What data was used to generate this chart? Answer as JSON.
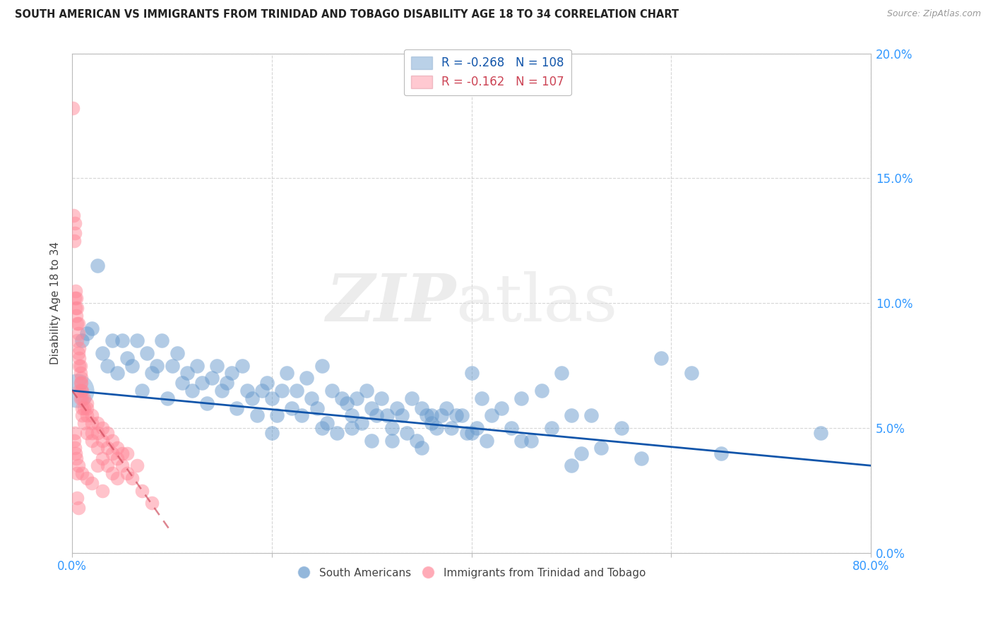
{
  "title": "SOUTH AMERICAN VS IMMIGRANTS FROM TRINIDAD AND TOBAGO DISABILITY AGE 18 TO 34 CORRELATION CHART",
  "source": "Source: ZipAtlas.com",
  "ylabel": "Disability Age 18 to 34",
  "xlim": [
    0.0,
    80.0
  ],
  "ylim": [
    0.0,
    20.0
  ],
  "yticks": [
    0.0,
    5.0,
    10.0,
    15.0,
    20.0
  ],
  "xticks": [
    0.0,
    20.0,
    40.0,
    60.0,
    80.0
  ],
  "xtick_labels": [
    "0.0%",
    "",
    "",
    "",
    "80.0%"
  ],
  "blue_R": "-0.268",
  "blue_N": "108",
  "pink_R": "-0.162",
  "pink_N": "107",
  "blue_color": "#6699CC",
  "pink_color": "#FF8899",
  "blue_trend_color": "#1155AA",
  "pink_trend_color": "#CC4455",
  "watermark_zip": "ZIP",
  "watermark_atlas": "atlas",
  "legend_label_blue": "South Americans",
  "legend_label_pink": "Immigrants from Trinidad and Tobago",
  "blue_large_dot": [
    0.5,
    6.5
  ],
  "blue_large_dot_size": 1200,
  "blue_scatter": [
    [
      1.0,
      8.5
    ],
    [
      1.5,
      8.8
    ],
    [
      2.0,
      9.0
    ],
    [
      2.5,
      11.5
    ],
    [
      3.0,
      8.0
    ],
    [
      3.5,
      7.5
    ],
    [
      4.0,
      8.5
    ],
    [
      4.5,
      7.2
    ],
    [
      5.0,
      8.5
    ],
    [
      5.5,
      7.8
    ],
    [
      6.0,
      7.5
    ],
    [
      6.5,
      8.5
    ],
    [
      7.0,
      6.5
    ],
    [
      7.5,
      8.0
    ],
    [
      8.0,
      7.2
    ],
    [
      8.5,
      7.5
    ],
    [
      9.0,
      8.5
    ],
    [
      9.5,
      6.2
    ],
    [
      10.0,
      7.5
    ],
    [
      10.5,
      8.0
    ],
    [
      11.0,
      6.8
    ],
    [
      11.5,
      7.2
    ],
    [
      12.0,
      6.5
    ],
    [
      12.5,
      7.5
    ],
    [
      13.0,
      6.8
    ],
    [
      13.5,
      6.0
    ],
    [
      14.0,
      7.0
    ],
    [
      14.5,
      7.5
    ],
    [
      15.0,
      6.5
    ],
    [
      15.5,
      6.8
    ],
    [
      16.0,
      7.2
    ],
    [
      16.5,
      5.8
    ],
    [
      17.0,
      7.5
    ],
    [
      17.5,
      6.5
    ],
    [
      18.0,
      6.2
    ],
    [
      18.5,
      5.5
    ],
    [
      19.0,
      6.5
    ],
    [
      19.5,
      6.8
    ],
    [
      20.0,
      6.2
    ],
    [
      20.5,
      5.5
    ],
    [
      21.0,
      6.5
    ],
    [
      21.5,
      7.2
    ],
    [
      22.0,
      5.8
    ],
    [
      22.5,
      6.5
    ],
    [
      23.0,
      5.5
    ],
    [
      23.5,
      7.0
    ],
    [
      24.0,
      6.2
    ],
    [
      24.5,
      5.8
    ],
    [
      25.0,
      7.5
    ],
    [
      25.5,
      5.2
    ],
    [
      26.0,
      6.5
    ],
    [
      26.5,
      4.8
    ],
    [
      27.0,
      6.2
    ],
    [
      27.5,
      6.0
    ],
    [
      28.0,
      5.5
    ],
    [
      28.5,
      6.2
    ],
    [
      29.0,
      5.2
    ],
    [
      29.5,
      6.5
    ],
    [
      30.0,
      5.8
    ],
    [
      30.5,
      5.5
    ],
    [
      31.0,
      6.2
    ],
    [
      31.5,
      5.5
    ],
    [
      32.0,
      5.0
    ],
    [
      32.5,
      5.8
    ],
    [
      33.0,
      5.5
    ],
    [
      33.5,
      4.8
    ],
    [
      34.0,
      6.2
    ],
    [
      34.5,
      4.5
    ],
    [
      35.0,
      5.8
    ],
    [
      35.5,
      5.5
    ],
    [
      36.0,
      5.5
    ],
    [
      36.5,
      5.0
    ],
    [
      37.0,
      5.5
    ],
    [
      37.5,
      5.8
    ],
    [
      38.0,
      5.0
    ],
    [
      38.5,
      5.5
    ],
    [
      39.0,
      5.5
    ],
    [
      39.5,
      4.8
    ],
    [
      40.0,
      7.2
    ],
    [
      40.5,
      5.0
    ],
    [
      41.0,
      6.2
    ],
    [
      41.5,
      4.5
    ],
    [
      42.0,
      5.5
    ],
    [
      43.0,
      5.8
    ],
    [
      44.0,
      5.0
    ],
    [
      45.0,
      6.2
    ],
    [
      46.0,
      4.5
    ],
    [
      47.0,
      6.5
    ],
    [
      48.0,
      5.0
    ],
    [
      49.0,
      7.2
    ],
    [
      50.0,
      5.5
    ],
    [
      51.0,
      4.0
    ],
    [
      52.0,
      5.5
    ],
    [
      53.0,
      4.2
    ],
    [
      55.0,
      5.0
    ],
    [
      57.0,
      3.8
    ],
    [
      59.0,
      7.8
    ],
    [
      62.0,
      7.2
    ],
    [
      65.0,
      4.0
    ],
    [
      75.0,
      4.8
    ],
    [
      30.0,
      4.5
    ],
    [
      35.0,
      4.2
    ],
    [
      40.0,
      4.8
    ],
    [
      45.0,
      4.5
    ],
    [
      50.0,
      3.5
    ],
    [
      28.0,
      5.0
    ],
    [
      32.0,
      4.5
    ],
    [
      36.0,
      5.2
    ],
    [
      20.0,
      4.8
    ],
    [
      25.0,
      5.0
    ]
  ],
  "pink_scatter": [
    [
      0.08,
      17.8
    ],
    [
      0.15,
      13.5
    ],
    [
      0.2,
      12.5
    ],
    [
      0.25,
      13.2
    ],
    [
      0.3,
      12.8
    ],
    [
      0.3,
      10.2
    ],
    [
      0.35,
      10.5
    ],
    [
      0.35,
      9.8
    ],
    [
      0.4,
      9.5
    ],
    [
      0.4,
      10.2
    ],
    [
      0.5,
      9.2
    ],
    [
      0.5,
      9.8
    ],
    [
      0.5,
      8.5
    ],
    [
      0.6,
      8.8
    ],
    [
      0.6,
      9.2
    ],
    [
      0.6,
      8.0
    ],
    [
      0.7,
      7.5
    ],
    [
      0.7,
      8.2
    ],
    [
      0.7,
      7.8
    ],
    [
      0.7,
      6.5
    ],
    [
      0.8,
      7.2
    ],
    [
      0.8,
      6.8
    ],
    [
      0.8,
      7.5
    ],
    [
      0.8,
      6.2
    ],
    [
      0.9,
      6.5
    ],
    [
      0.9,
      7.0
    ],
    [
      0.9,
      6.8
    ],
    [
      1.0,
      6.2
    ],
    [
      1.0,
      5.8
    ],
    [
      1.0,
      6.5
    ],
    [
      1.0,
      5.5
    ],
    [
      1.2,
      5.8
    ],
    [
      1.2,
      6.2
    ],
    [
      1.2,
      5.2
    ],
    [
      1.5,
      5.5
    ],
    [
      1.5,
      6.0
    ],
    [
      1.5,
      5.8
    ],
    [
      1.5,
      4.8
    ],
    [
      2.0,
      5.2
    ],
    [
      2.0,
      4.8
    ],
    [
      2.0,
      5.5
    ],
    [
      2.0,
      4.5
    ],
    [
      2.5,
      4.8
    ],
    [
      2.5,
      5.2
    ],
    [
      2.5,
      4.2
    ],
    [
      3.0,
      4.5
    ],
    [
      3.0,
      5.0
    ],
    [
      3.0,
      3.8
    ],
    [
      3.5,
      4.2
    ],
    [
      3.5,
      4.8
    ],
    [
      3.5,
      3.5
    ],
    [
      4.0,
      4.0
    ],
    [
      4.0,
      4.5
    ],
    [
      4.0,
      3.2
    ],
    [
      4.5,
      3.8
    ],
    [
      4.5,
      4.2
    ],
    [
      4.5,
      3.0
    ],
    [
      5.0,
      3.5
    ],
    [
      5.0,
      4.0
    ],
    [
      5.5,
      3.2
    ],
    [
      5.5,
      4.0
    ],
    [
      6.0,
      3.0
    ],
    [
      6.5,
      3.5
    ],
    [
      7.0,
      2.5
    ],
    [
      8.0,
      2.0
    ],
    [
      0.3,
      4.8
    ],
    [
      0.4,
      3.8
    ],
    [
      0.5,
      3.2
    ],
    [
      0.6,
      3.5
    ],
    [
      1.0,
      3.2
    ],
    [
      1.5,
      3.0
    ],
    [
      2.0,
      2.8
    ],
    [
      0.2,
      4.5
    ],
    [
      0.25,
      4.2
    ],
    [
      0.35,
      4.0
    ],
    [
      2.5,
      3.5
    ],
    [
      3.0,
      2.5
    ],
    [
      0.5,
      2.2
    ],
    [
      0.6,
      1.8
    ]
  ],
  "blue_trend": {
    "x_start": 0.0,
    "y_start": 6.5,
    "x_end": 80.0,
    "y_end": 3.5
  },
  "pink_trend": {
    "x_start": 0.0,
    "y_start": 6.5,
    "x_end": 10.0,
    "y_end": 0.8
  }
}
